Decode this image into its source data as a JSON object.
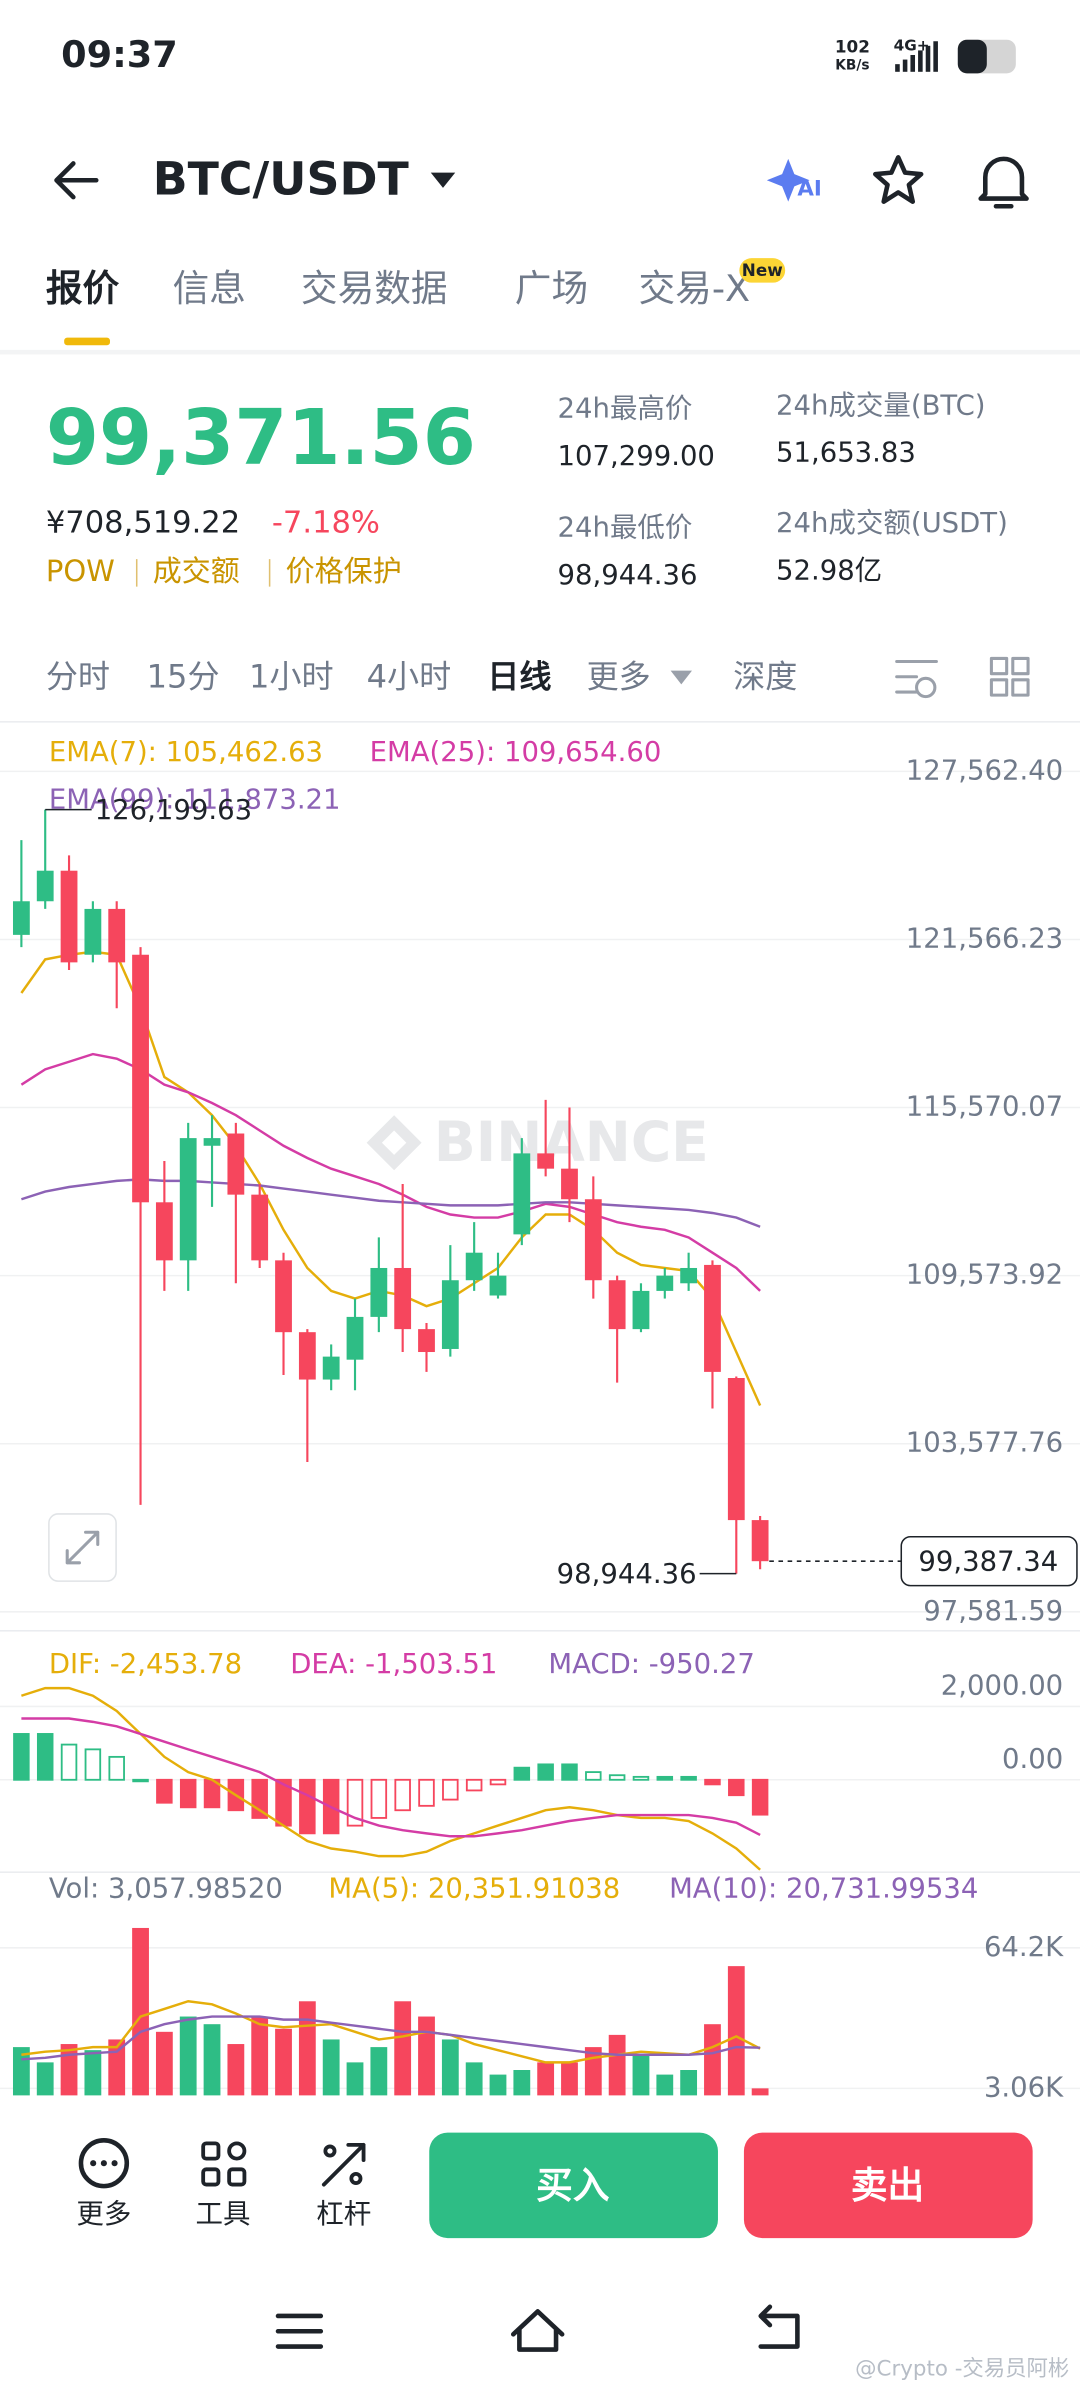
{
  "status": {
    "time": "09:37",
    "speed": "102",
    "speed_unit": "KB/s",
    "network": "4G+"
  },
  "header": {
    "pair": "BTC/USDT"
  },
  "tabs": {
    "items": [
      "报价",
      "信息",
      "交易数据",
      "广场",
      "交易-X"
    ],
    "badge": "New"
  },
  "quote": {
    "price": "99,371.56",
    "cny": "¥708,519.22",
    "change": "-7.18%",
    "tags": [
      "POW",
      "成交额",
      "价格保护"
    ],
    "stats": [
      {
        "label": "24h最高价",
        "value": "107,299.00"
      },
      {
        "label": "24h成交量(BTC)",
        "value": "51,653.83"
      },
      {
        "label": "24h最低价",
        "value": "98,944.36"
      },
      {
        "label": "24h成交额(USDT)",
        "value": "52.98亿"
      }
    ]
  },
  "intervals": [
    "分时",
    "15分",
    "1小时",
    "4小时",
    "日线",
    "更多",
    "深度"
  ],
  "watermark": "BINANCE",
  "price_chart": {
    "type": "candlestick",
    "ylim": [
      97040,
      129030
    ],
    "yticks": [
      {
        "value": 127562.4,
        "label": "127,562.40"
      },
      {
        "value": 121566.23,
        "label": "121,566.23"
      },
      {
        "value": 115570.07,
        "label": "115,570.07"
      },
      {
        "value": 109573.92,
        "label": "109,573.92"
      },
      {
        "value": 103577.76,
        "label": "103,577.76"
      },
      {
        "value": 97581.59,
        "label": "97,581.59"
      }
    ],
    "up_color": "#2ebd85",
    "down_color": "#f6465d",
    "open": [
      121730,
      122929,
      124019,
      121021,
      122656,
      121021,
      112190,
      110119,
      114207,
      114644,
      112463,
      110119,
      107557,
      105867,
      106576,
      108102,
      109847,
      107666,
      106958,
      109410,
      108865,
      111046,
      113935,
      113390,
      112299,
      109410,
      107666,
      109029,
      109301,
      109956,
      105922,
      100853
    ],
    "high": [
      125110,
      126199.63,
      124564,
      122929,
      122929,
      121294,
      113662,
      115025,
      115298,
      115025,
      112845,
      110392,
      107666,
      107120,
      108756,
      110937,
      112845,
      107884,
      110664,
      111482,
      110392,
      114480,
      115843,
      115570,
      113117,
      109574,
      109301,
      109847,
      110392,
      110119,
      105977,
      101000
    ],
    "low": [
      121294,
      122656,
      120476,
      120749,
      119113,
      101398,
      109029,
      109029,
      112027,
      109301,
      109847,
      106031,
      102924,
      105486,
      105486,
      107557,
      106849,
      106140,
      106685,
      109029,
      108756,
      110664,
      113117,
      111482,
      108756,
      105758,
      107557,
      108756,
      109029,
      104832,
      98944.36,
      99100
    ],
    "close": [
      122929,
      124019,
      120749,
      122656,
      120749,
      112190,
      110119,
      114480,
      114480,
      112463,
      110119,
      107557,
      105867,
      106685,
      108102,
      109847,
      107666,
      106849,
      109410,
      110392,
      109574,
      113935,
      113390,
      112299,
      109410,
      107666,
      109029,
      109574,
      109847,
      106140,
      100853,
      99387.34
    ],
    "series": [
      {
        "label": "EMA(7): 105,462.63",
        "color": "#e5ae0a",
        "values": [
          119658,
          120858,
          121021,
          121130,
          121021,
          119113,
          116660,
          116115,
          115298,
          114207,
          112845,
          111209,
          109847,
          109029,
          108756,
          109029,
          108865,
          108484,
          108756,
          109301,
          109847,
          110937,
          111754,
          111754,
          111209,
          110392,
          109956,
          109847,
          109738,
          108756,
          106849,
          104940
        ]
      },
      {
        "label": "EMA(25): 109,654.60",
        "color": "#d43ca5",
        "values": [
          116387,
          116932,
          117205,
          117477,
          117314,
          116932,
          116387,
          116115,
          115733,
          115298,
          114752,
          114207,
          113771,
          113390,
          113117,
          112845,
          112463,
          112027,
          111754,
          111645,
          111645,
          111864,
          112136,
          112027,
          111754,
          111482,
          111318,
          111209,
          110937,
          110392,
          109847,
          109029
        ]
      },
      {
        "label": "EMA(99): 111,873.21",
        "color": "#8c62b5",
        "values": [
          112299,
          112572,
          112736,
          112845,
          112954,
          113008,
          112954,
          112954,
          112899,
          112845,
          112790,
          112681,
          112572,
          112463,
          112354,
          112245,
          112190,
          112136,
          112081,
          112081,
          112081,
          112136,
          112190,
          112190,
          112136,
          112081,
          112027,
          111973,
          111918,
          111809,
          111645,
          111318
        ]
      }
    ],
    "high_marker": {
      "value": 126199.63,
      "label": "126,199.63"
    },
    "low_marker": {
      "value": 98944.36,
      "label": "98,944.36"
    },
    "last_price": {
      "value": 99387.34,
      "label": "99,387.34"
    }
  },
  "macd_chart": {
    "type": "macd",
    "ylim": [
      -2540,
      3625
    ],
    "yticks": [
      {
        "value": 2000,
        "label": "2,000.00"
      },
      {
        "value": 0,
        "label": "0.00"
      }
    ],
    "histogram": {
      "label": "MACD: -950.27",
      "color": "#8c62b5",
      "values": [
        1250,
        1250,
        960,
        830,
        625,
        0,
        -625,
        -750,
        -750,
        -830,
        -1040,
        -1250,
        -1460,
        -1460,
        -1250,
        -1040,
        -830,
        -710,
        -540,
        -290,
        -125,
        330,
        420,
        420,
        210,
        125,
        80,
        80,
        80,
        -125,
        -420,
        -950.27
      ]
    },
    "series": [
      {
        "label": "DIF: -2,453.78",
        "color": "#e5ae0a",
        "values": [
          2290,
          2500,
          2500,
          2290,
          1875,
          1250,
          625,
          210,
          0,
          -420,
          -830,
          -1250,
          -1670,
          -1875,
          -1960,
          -2080,
          -2080,
          -1960,
          -1670,
          -1460,
          -1250,
          -1040,
          -830,
          -750,
          -830,
          -960,
          -1040,
          -1040,
          -1125,
          -1460,
          -1875,
          -2453.78
        ]
      },
      {
        "label": "DEA: -1,503.51",
        "color": "#d43ca5",
        "values": [
          1670,
          1670,
          1670,
          1580,
          1460,
          1250,
          1040,
          830,
          625,
          420,
          210,
          -125,
          -420,
          -750,
          -1040,
          -1250,
          -1375,
          -1460,
          -1540,
          -1540,
          -1460,
          -1375,
          -1250,
          -1125,
          -1040,
          -960,
          -960,
          -960,
          -960,
          -1040,
          -1170,
          -1503.51
        ]
      }
    ]
  },
  "volume_chart": {
    "type": "volume",
    "ylim": [
      -2260,
      80820
    ],
    "yticks": [
      {
        "value": 64200,
        "label": "64.2K"
      },
      {
        "value": 3060,
        "label": "3.06K"
      }
    ],
    "volume": {
      "label": "Vol: 3,057.98520",
      "color": "#707a8a",
      "values": [
        21000,
        14360,
        22330,
        19680,
        24330,
        72840,
        27650,
        34300,
        30970,
        22330,
        34300,
        28980,
        40940,
        24330,
        14360,
        21000,
        40940,
        34300,
        24330,
        14360,
        9040,
        11040,
        14360,
        14360,
        21000,
        26320,
        17680,
        9040,
        11040,
        30970,
        56230,
        3057.9852
      ]
    },
    "series": [
      {
        "label": "MA(5): 20,351.91038",
        "color": "#e5ae0a",
        "values": [
          17680,
          19010,
          19680,
          21000,
          21000,
          34300,
          37620,
          40940,
          39610,
          35630,
          30970,
          29640,
          30310,
          30970,
          27650,
          24330,
          25660,
          27650,
          26320,
          22330,
          19680,
          17020,
          14360,
          14360,
          16350,
          17680,
          19010,
          18350,
          17680,
          21000,
          25660,
          20351.91038
        ]
      },
      {
        "label": "MA(10): 20,731.99534",
        "color": "#8c62b5",
        "values": [
          15690,
          16350,
          17680,
          18350,
          19010,
          27650,
          30970,
          32970,
          34300,
          34300,
          34300,
          32970,
          32970,
          31640,
          30310,
          28980,
          27650,
          27650,
          26320,
          24990,
          23670,
          22330,
          21000,
          19680,
          18350,
          17680,
          17680,
          17680,
          17680,
          18350,
          21000,
          20731.99534
        ]
      }
    ]
  },
  "toolbar": {
    "items": [
      "更多",
      "工具",
      "杠杆"
    ],
    "buy": "买入",
    "sell": "卖出"
  },
  "footer": {
    "credit": "@Crypto -交易员阿彬"
  }
}
